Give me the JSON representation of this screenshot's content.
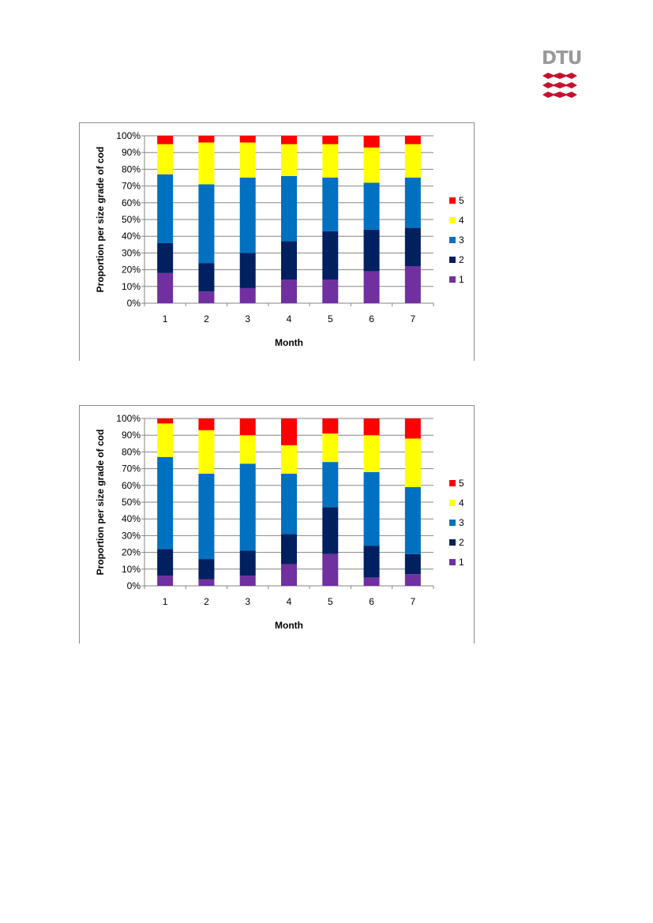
{
  "logo": {
    "text": "DTU",
    "colors": {
      "text": "#9a9a9a",
      "mark": "#c8102e"
    }
  },
  "colors": {
    "grade_1": "#7030a0",
    "grade_2": "#002060",
    "grade_3": "#0070c0",
    "grade_4": "#ffff00",
    "grade_5": "#ff0000",
    "gridline": "#868686",
    "frame": "#8c8c8c"
  },
  "chart_data": [
    {
      "type": "bar",
      "stacked": true,
      "stack_mode": "percent",
      "categories": [
        "1",
        "2",
        "3",
        "4",
        "5",
        "6",
        "7"
      ],
      "xlabel": "Month",
      "ylabel": "Proportion per size grade of cod",
      "ylim": [
        0,
        100
      ],
      "yticks": [
        "0%",
        "10%",
        "20%",
        "30%",
        "40%",
        "50%",
        "60%",
        "70%",
        "80%",
        "90%",
        "100%"
      ],
      "grid": true,
      "legend_position": "right",
      "series": [
        {
          "name": "1",
          "color": "#7030a0",
          "values": [
            18,
            7,
            9,
            14,
            14,
            19,
            22
          ]
        },
        {
          "name": "2",
          "color": "#002060",
          "values": [
            18,
            17,
            21,
            23,
            29,
            25,
            23
          ]
        },
        {
          "name": "3",
          "color": "#0070c0",
          "values": [
            41,
            47,
            45,
            39,
            32,
            28,
            30
          ]
        },
        {
          "name": "4",
          "color": "#ffff00",
          "values": [
            18,
            25,
            21,
            19,
            20,
            21,
            20
          ]
        },
        {
          "name": "5",
          "color": "#ff0000",
          "values": [
            5,
            4,
            4,
            5,
            5,
            7,
            5
          ]
        }
      ]
    },
    {
      "type": "bar",
      "stacked": true,
      "stack_mode": "percent",
      "categories": [
        "1",
        "2",
        "3",
        "4",
        "5",
        "6",
        "7"
      ],
      "xlabel": "Month",
      "ylabel": "Proportion per size grade of cod",
      "ylim": [
        0,
        100
      ],
      "yticks": [
        "0%",
        "10%",
        "20%",
        "30%",
        "40%",
        "50%",
        "60%",
        "70%",
        "80%",
        "90%",
        "100%"
      ],
      "grid": true,
      "legend_position": "right",
      "series": [
        {
          "name": "1",
          "color": "#7030a0",
          "values": [
            6,
            4,
            6,
            13,
            19,
            5,
            7
          ]
        },
        {
          "name": "2",
          "color": "#002060",
          "values": [
            16,
            12,
            15,
            18,
            28,
            19,
            12
          ]
        },
        {
          "name": "3",
          "color": "#0070c0",
          "values": [
            55,
            51,
            52,
            36,
            27,
            44,
            40
          ]
        },
        {
          "name": "4",
          "color": "#ffff00",
          "values": [
            20,
            26,
            17,
            17,
            17,
            22,
            29
          ]
        },
        {
          "name": "5",
          "color": "#ff0000",
          "values": [
            3,
            7,
            10,
            16,
            9,
            10,
            12
          ]
        }
      ]
    }
  ]
}
